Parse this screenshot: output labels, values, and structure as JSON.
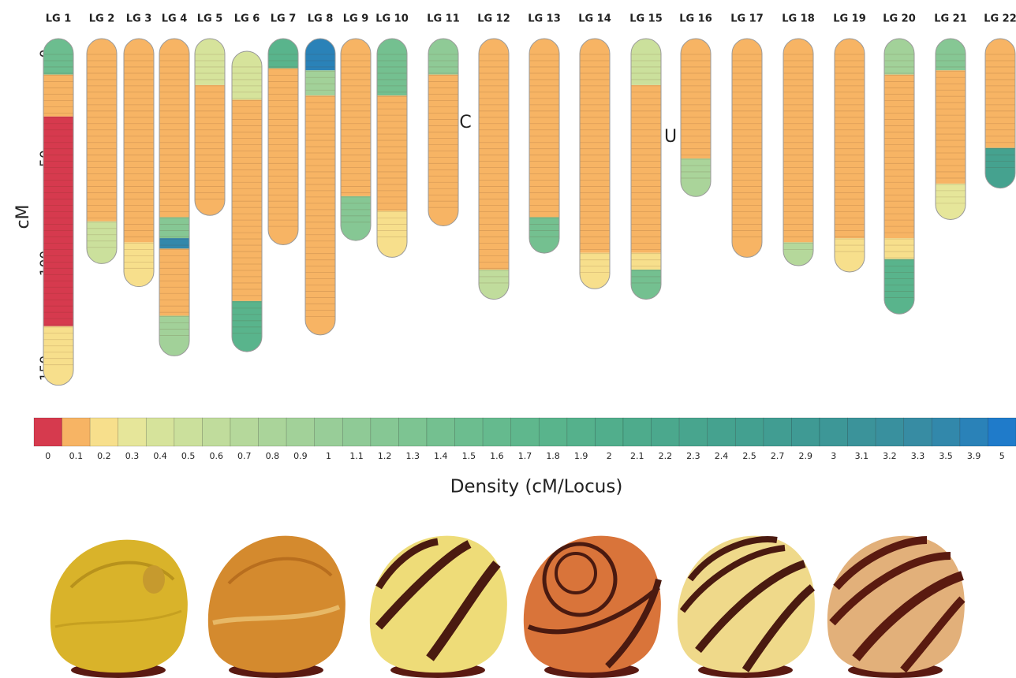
{
  "chart_data": {
    "type": "linkage-map",
    "y_label": "cM",
    "ylim": [
      0,
      160
    ],
    "yticks": [
      0,
      50,
      100,
      150
    ],
    "groups": [
      {
        "name": "LG 1",
        "segments": [
          [
            0,
            10,
            1.5
          ],
          [
            10,
            30,
            0.1
          ],
          [
            30,
            130,
            0
          ],
          [
            130,
            151,
            0.2
          ]
        ]
      },
      {
        "name": "LG 2",
        "segments": [
          [
            0,
            80,
            0.1
          ],
          [
            80,
            93,
            0.5
          ]
        ]
      },
      {
        "name": "LG 3",
        "segments": [
          [
            0,
            90,
            0.1
          ],
          [
            90,
            104,
            0.2
          ]
        ]
      },
      {
        "name": "LG 4",
        "segments": [
          [
            0,
            78,
            0.1
          ],
          [
            78,
            88,
            1.2
          ],
          [
            88,
            93,
            3.5
          ],
          [
            93,
            125,
            0.1
          ],
          [
            125,
            137,
            0.9
          ]
        ]
      },
      {
        "name": "LG 5",
        "segments": [
          [
            0,
            15,
            0.4
          ],
          [
            15,
            70,
            0.1
          ]
        ]
      },
      {
        "name": "LG 6",
        "segments": [
          [
            6,
            22,
            0.4
          ],
          [
            22,
            118,
            0.1
          ],
          [
            118,
            135,
            1.8
          ]
        ]
      },
      {
        "name": "LG 7",
        "segments": [
          [
            0,
            7,
            1.8
          ],
          [
            7,
            84,
            0.1
          ]
        ]
      },
      {
        "name": "LG 8",
        "segments": [
          [
            0,
            8,
            3.9
          ],
          [
            8,
            20,
            0.9
          ],
          [
            20,
            127,
            0.1
          ]
        ]
      },
      {
        "name": "LG 9",
        "segments": [
          [
            0,
            68,
            0.1
          ],
          [
            68,
            82,
            1.2
          ]
        ]
      },
      {
        "name": "LG 10",
        "segments": [
          [
            0,
            20,
            1.4
          ],
          [
            20,
            75,
            0.1
          ],
          [
            75,
            90,
            0.2
          ]
        ]
      },
      {
        "name": "LG 11",
        "segments": [
          [
            0,
            10,
            1.1
          ],
          [
            10,
            75,
            0.1
          ]
        ]
      },
      {
        "name": "LG 12",
        "segments": [
          [
            0,
            103,
            0.1
          ],
          [
            103,
            110,
            0.6
          ]
        ]
      },
      {
        "name": "LG 13",
        "segments": [
          [
            0,
            78,
            0.1
          ],
          [
            78,
            88,
            1.4
          ]
        ]
      },
      {
        "name": "LG 14",
        "segments": [
          [
            0,
            95,
            0.1
          ],
          [
            95,
            105,
            0.2
          ]
        ]
      },
      {
        "name": "LG 15",
        "segments": [
          [
            0,
            15,
            0.5
          ],
          [
            15,
            95,
            0.1
          ],
          [
            95,
            103,
            0.2
          ],
          [
            103,
            110,
            1.4
          ]
        ]
      },
      {
        "name": "LG 16",
        "segments": [
          [
            0,
            50,
            0.1
          ],
          [
            50,
            61,
            0.8
          ]
        ]
      },
      {
        "name": "LG 17",
        "segments": [
          [
            0,
            90,
            0.1
          ]
        ]
      },
      {
        "name": "LG 18",
        "segments": [
          [
            0,
            90,
            0.1
          ],
          [
            90,
            94,
            0.7
          ]
        ]
      },
      {
        "name": "LG 19",
        "segments": [
          [
            0,
            88,
            0.1
          ],
          [
            88,
            97,
            0.2
          ]
        ]
      },
      {
        "name": "LG 20",
        "segments": [
          [
            0,
            10,
            0.9
          ],
          [
            10,
            88,
            0.1
          ],
          [
            88,
            98,
            0.2
          ],
          [
            98,
            117,
            1.8
          ]
        ]
      },
      {
        "name": "LG 21",
        "segments": [
          [
            0,
            8,
            1.2
          ],
          [
            8,
            62,
            0.1
          ],
          [
            62,
            72,
            0.3
          ]
        ]
      },
      {
        "name": "LG 22",
        "segments": [
          [
            0,
            45,
            0.1
          ],
          [
            45,
            57,
            2.4
          ]
        ]
      }
    ],
    "annotations": [
      "C",
      "U"
    ],
    "legend": {
      "title": "Density (cM/Locus)",
      "values": [
        0,
        0.1,
        0.2,
        0.3,
        0.4,
        0.5,
        0.6,
        0.7,
        0.8,
        0.9,
        1,
        1.1,
        1.2,
        1.3,
        1.4,
        1.5,
        1.6,
        1.7,
        1.8,
        1.9,
        2,
        2.1,
        2.2,
        2.3,
        2.4,
        2.5,
        2.7,
        2.9,
        3,
        3.1,
        3.2,
        3.3,
        3.5,
        3.9,
        5
      ],
      "colors": [
        "#d63a4e",
        "#f7b464",
        "#f7df8c",
        "#e6e69a",
        "#d6e39b",
        "#cbe09c",
        "#c0dc9c",
        "#b5d89b",
        "#aad49a",
        "#a2d199",
        "#98cd98",
        "#8fca96",
        "#86c794",
        "#7dc492",
        "#74c090",
        "#6cbd8f",
        "#65ba8e",
        "#5fb78d",
        "#59b48c",
        "#55b18c",
        "#51ae8c",
        "#4eab8c",
        "#4ba88d",
        "#48a58e",
        "#45a28f",
        "#43a090",
        "#419d92",
        "#3f9a94",
        "#3d9797",
        "#3b939a",
        "#39909e",
        "#378ca3",
        "#3288ab",
        "#2a82b8",
        "#1f7bca"
      ]
    }
  }
}
